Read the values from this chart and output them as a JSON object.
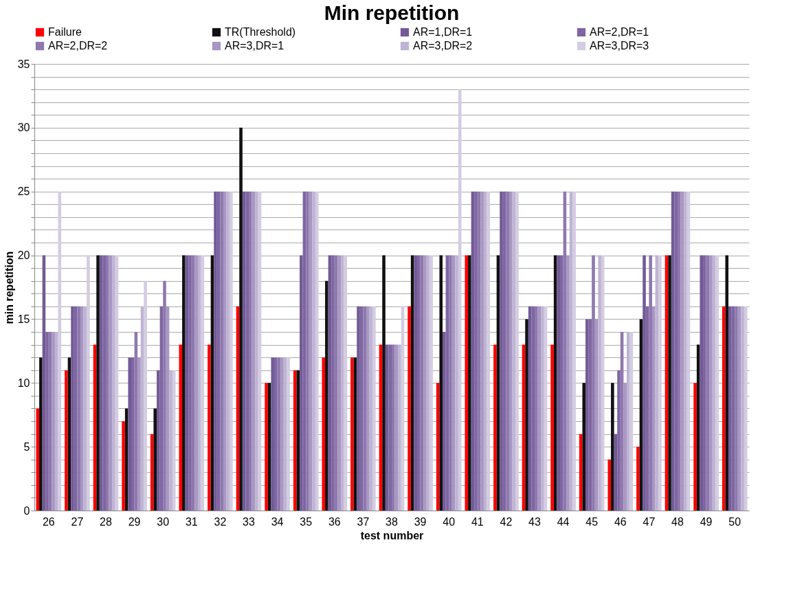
{
  "chart_data": {
    "type": "bar",
    "title": "Min repetition",
    "xlabel": "test number",
    "ylabel": "min repetition",
    "categories": [
      "26",
      "27",
      "28",
      "29",
      "30",
      "31",
      "32",
      "33",
      "34",
      "35",
      "36",
      "37",
      "38",
      "39",
      "40",
      "41",
      "42",
      "43",
      "44",
      "45",
      "46",
      "47",
      "48",
      "49",
      "50"
    ],
    "series": [
      {
        "name": "Failure",
        "color": "#ff0000",
        "values": [
          8,
          11,
          13,
          7,
          6,
          13,
          13,
          16,
          10,
          11,
          12,
          12,
          13,
          16,
          10,
          20,
          13,
          13,
          13,
          6,
          4,
          5,
          20,
          10,
          16
        ]
      },
      {
        "name": "TR(Threshold)",
        "color": "#111111",
        "values": [
          12,
          12,
          20,
          8,
          8,
          20,
          20,
          30,
          10,
          11,
          18,
          12,
          20,
          20,
          20,
          20,
          20,
          15,
          20,
          10,
          10,
          15,
          20,
          13,
          20
        ]
      },
      {
        "name": "AR=1,DR=1",
        "color": "#725a96",
        "values": [
          20,
          16,
          20,
          12,
          11,
          20,
          25,
          25,
          12,
          20,
          20,
          16,
          13,
          20,
          14,
          25,
          25,
          16,
          20,
          15,
          6,
          20,
          25,
          20,
          16
        ]
      },
      {
        "name": "AR=2,DR=1",
        "color": "#7e66a2",
        "values": [
          14,
          16,
          20,
          12,
          16,
          20,
          25,
          25,
          12,
          25,
          20,
          16,
          13,
          20,
          20,
          25,
          25,
          16,
          20,
          15,
          11,
          16,
          25,
          20,
          16
        ]
      },
      {
        "name": "AR=2,DR=2",
        "color": "#8e78ae",
        "values": [
          14,
          16,
          20,
          14,
          18,
          20,
          25,
          25,
          12,
          25,
          20,
          16,
          13,
          20,
          20,
          25,
          25,
          16,
          25,
          20,
          14,
          20,
          25,
          20,
          16
        ]
      },
      {
        "name": "AR=3,DR=1",
        "color": "#a797c2",
        "values": [
          14,
          16,
          20,
          12,
          16,
          20,
          25,
          25,
          12,
          25,
          20,
          16,
          13,
          20,
          20,
          25,
          25,
          16,
          20,
          15,
          10,
          16,
          25,
          20,
          16
        ]
      },
      {
        "name": "AR=3,DR=2",
        "color": "#bfb4d4",
        "values": [
          14,
          16,
          20,
          16,
          11,
          20,
          25,
          25,
          12,
          25,
          20,
          16,
          13,
          20,
          20,
          25,
          25,
          16,
          25,
          20,
          14,
          20,
          25,
          20,
          16
        ]
      },
      {
        "name": "AR=3,DR=3",
        "color": "#d3cce2",
        "values": [
          25,
          20,
          20,
          18,
          11,
          20,
          25,
          25,
          12,
          25,
          20,
          16,
          16,
          20,
          33,
          25,
          25,
          16,
          25,
          20,
          14,
          20,
          25,
          20,
          16
        ]
      }
    ],
    "ylim": [
      0,
      35
    ],
    "yticks": [
      0,
      {
        "value": 1,
        "label": null
      },
      {
        "value": 2,
        "label": null
      },
      {
        "value": 3,
        "label": null
      },
      {
        "value": 4,
        "label": null
      },
      5,
      {
        "value": 6,
        "label": null
      },
      {
        "value": 7,
        "label": null
      },
      {
        "value": 8,
        "label": null
      },
      {
        "value": 9,
        "label": null
      },
      10,
      {
        "value": 11,
        "label": null
      },
      {
        "value": 12,
        "label": null
      },
      {
        "value": 13,
        "label": null
      },
      {
        "value": 14,
        "label": null
      },
      15,
      {
        "value": 16,
        "label": null
      },
      {
        "value": 17,
        "label": null
      },
      {
        "value": 18,
        "label": null
      },
      {
        "value": 19,
        "label": null
      },
      20,
      {
        "value": 21,
        "label": null
      },
      {
        "value": 22,
        "label": null
      },
      {
        "value": 23,
        "label": null
      },
      {
        "value": 24,
        "label": null
      },
      25,
      {
        "value": 26,
        "label": null
      },
      {
        "value": 27,
        "label": null
      },
      {
        "value": 28,
        "label": null
      },
      {
        "value": 29,
        "label": null
      },
      30,
      {
        "value": 31,
        "label": null
      },
      {
        "value": 32,
        "label": null
      },
      {
        "value": 33,
        "label": null
      },
      {
        "value": 34,
        "label": null
      },
      35
    ],
    "grid": "y",
    "legend": "top"
  }
}
